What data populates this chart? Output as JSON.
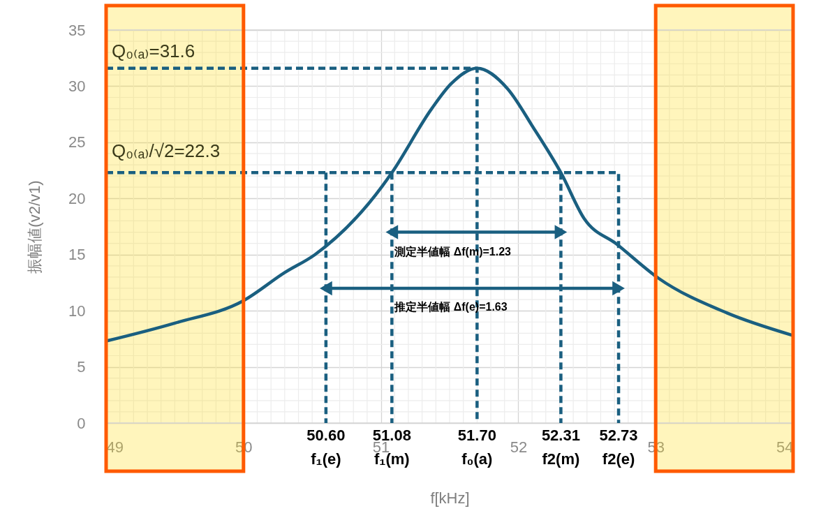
{
  "chart_data": {
    "type": "line",
    "xlabel": "f[kHz]",
    "ylabel": "振幅値(v2/v1)",
    "xlim": [
      49,
      54
    ],
    "xticks": [
      49,
      50,
      51,
      52,
      53,
      54
    ],
    "ylim": [
      0,
      35
    ],
    "yticks": [
      0,
      5,
      10,
      15,
      20,
      25,
      30,
      35
    ],
    "grid": true,
    "series": [
      {
        "color": "#1a5f80",
        "x": [
          49,
          49.5,
          50,
          50.3,
          50.52,
          51.01,
          51.08,
          51.37,
          51.51,
          51.7,
          51.92,
          52.11,
          52.31,
          52.48,
          52.72,
          53.02,
          53.52,
          54
        ],
        "values": [
          7.3,
          8.9,
          10.9,
          13.4,
          15.0,
          21.1,
          22.3,
          28.0,
          30.2,
          31.6,
          29.8,
          26.3,
          22.3,
          18.2,
          15.9,
          12.9,
          9.8,
          7.8
        ]
      },
      {
        "type": "line",
        "line_style": "dashed",
        "color": "#1a5f80",
        "x": [
          49,
          51.7,
          51.7
        ],
        "values": [
          31.6,
          31.6,
          0
        ]
      },
      {
        "type": "line",
        "line_style": "dashed",
        "color": "#1a5f80",
        "x": [
          49,
          52.73,
          52.73
        ],
        "values": [
          22.3,
          22.3,
          0
        ]
      },
      {
        "type": "line",
        "line_style": "dashed",
        "color": "#1a5f80",
        "x": [
          50.6,
          50.6
        ],
        "values": [
          22.3,
          0
        ]
      },
      {
        "type": "line",
        "line_style": "dashed",
        "color": "#1a5f80",
        "x": [
          51.08,
          51.08
        ],
        "values": [
          22.3,
          0
        ]
      },
      {
        "type": "line",
        "line_style": "dashed",
        "color": "#1a5f80",
        "x": [
          52.31,
          52.31
        ],
        "values": [
          22.3,
          0
        ]
      },
      {
        "type": "line",
        "marker": "triangle",
        "color": "#1a5f80",
        "x": [
          51.08,
          52.31
        ],
        "values": [
          17.0,
          17.0
        ]
      },
      {
        "type": "line",
        "marker": "triangle",
        "color": "#1a5f80",
        "x": [
          50.6,
          52.73
        ],
        "values": [
          12.0,
          12.0
        ]
      }
    ],
    "bands": [
      {
        "axis": "x",
        "from": 49,
        "to": 50,
        "color": "#ffdf20"
      },
      {
        "axis": "x",
        "from": 53,
        "to": 54,
        "color": "#ffdf20"
      }
    ],
    "annotations": [
      {
        "text": "Q₀₍ₐ₎=31.6",
        "x": 49,
        "y": 33.1
      },
      {
        "text": "Q₀₍ₐ₎/√2=22.3",
        "x": 49,
        "y": 24.2
      },
      {
        "text": "測定半値幅  Δf(m)=1.23",
        "x": 51.08,
        "y": 15.2
      },
      {
        "text": "推定半値幅  Δf(e)=1.63",
        "x": 51.08,
        "y": 10.3
      },
      {
        "text": "50.60\nf₁(e)",
        "x": 50.6,
        "y": 0
      },
      {
        "text": "51.08\nf₁(m)",
        "x": 51.08,
        "y": 0
      },
      {
        "text": "51.70\nf₀(a)",
        "x": 51.7,
        "y": 0
      },
      {
        "text": "52.31\nf2(m)",
        "x": 52.31,
        "y": 0
      },
      {
        "text": "52.73\nf2(e)",
        "x": 52.73,
        "y": 0
      }
    ]
  }
}
